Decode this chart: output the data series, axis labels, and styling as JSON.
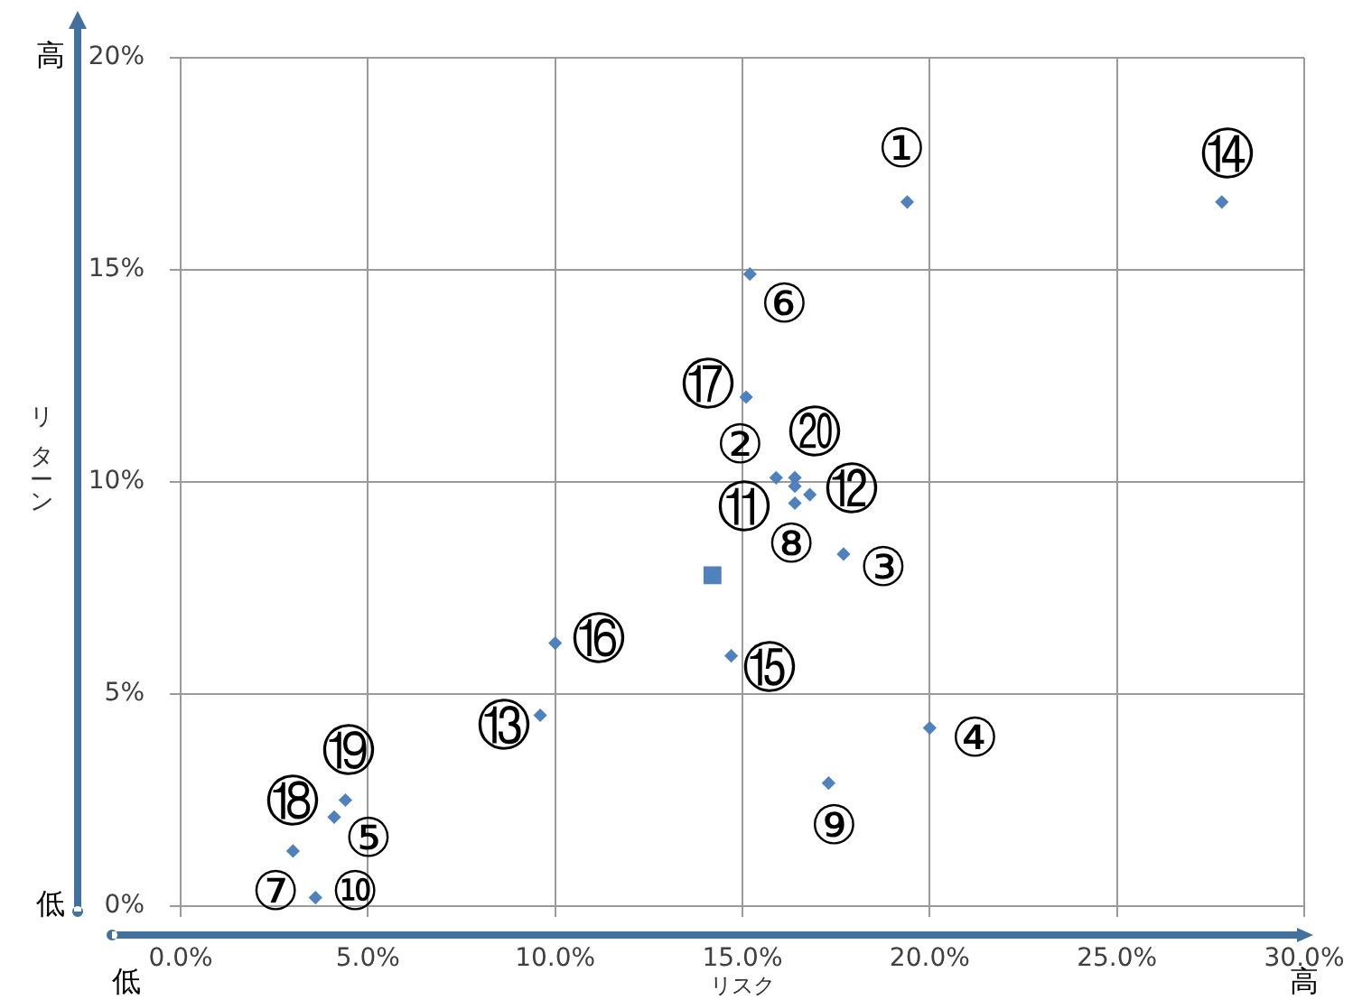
{
  "chart_data": {
    "type": "scatter",
    "xlabel": "リスク",
    "ylabel": "リターン",
    "xlim": [
      0,
      30
    ],
    "xticks": [
      {
        "value": 0,
        "label": "0.0%"
      },
      {
        "value": 5,
        "label": "5.0%"
      },
      {
        "value": 10,
        "label": "10.0%"
      },
      {
        "value": 15,
        "label": "15.0%"
      },
      {
        "value": 20,
        "label": "20.0%"
      },
      {
        "value": 25,
        "label": "25.0%"
      },
      {
        "value": 30,
        "label": "30.0%"
      }
    ],
    "ylim": [
      0,
      20
    ],
    "yticks": [
      {
        "value": 0,
        "label": "0%"
      },
      {
        "value": 5,
        "label": "5%"
      },
      {
        "value": 10,
        "label": "10%"
      },
      {
        "value": 15,
        "label": "15%"
      },
      {
        "value": 20,
        "label": "20%"
      }
    ],
    "grid": true,
    "marker": "diamond",
    "series": [
      {
        "color": "#4f81bd",
        "x": [
          19.4,
          15.9,
          17.7,
          20.0,
          4.1,
          15.2,
          3.6,
          16.4,
          17.3,
          16.4,
          16.8,
          9.6,
          27.8,
          14.7,
          10.0,
          15.1,
          3.0,
          4.4,
          16.4
        ],
        "values": [
          16.6,
          10.1,
          8.3,
          4.2,
          2.1,
          14.9,
          0.2,
          9.5,
          2.9,
          9.9,
          9.7,
          4.5,
          16.6,
          5.9,
          6.2,
          12.0,
          1.3,
          2.5,
          10.1
        ]
      },
      {
        "color": "#4f81bd",
        "marker": "square",
        "x": [
          14.2
        ],
        "values": [
          7.8
        ]
      }
    ],
    "annotations": [
      "高",
      "低",
      "低",
      "高",
      {
        "text": "①",
        "x": 19.4,
        "y": 16.6
      },
      {
        "text": "②",
        "x": 15.9,
        "y": 10.1
      },
      {
        "text": "③",
        "x": 17.7,
        "y": 8.3
      },
      {
        "text": "④",
        "x": 20.0,
        "y": 4.2
      },
      {
        "text": "⑤",
        "x": 4.1,
        "y": 2.1
      },
      {
        "text": "⑥",
        "x": 15.2,
        "y": 14.9
      },
      {
        "text": "⑦",
        "x": 3.6,
        "y": 0.2
      },
      {
        "text": "⑧",
        "x": 16.4,
        "y": 9.5
      },
      {
        "text": "⑨",
        "x": 17.3,
        "y": 2.9
      },
      {
        "text": "⑩",
        "x": 3.6,
        "y": 0.2
      },
      {
        "text": "⑪",
        "x": 16.4,
        "y": 9.9
      },
      {
        "text": "⑫",
        "x": 16.8,
        "y": 9.7
      },
      {
        "text": "⑬",
        "x": 9.6,
        "y": 4.5
      },
      {
        "text": "⑭",
        "x": 27.8,
        "y": 16.6
      },
      {
        "text": "⑮",
        "x": 14.7,
        "y": 5.9
      },
      {
        "text": "⑯",
        "x": 10.0,
        "y": 6.2
      },
      {
        "text": "⑰",
        "x": 15.1,
        "y": 12.0
      },
      {
        "text": "⑱",
        "x": 3.0,
        "y": 1.3
      },
      {
        "text": "⑲",
        "x": 4.4,
        "y": 2.5
      },
      {
        "text": "⑳",
        "x": 16.4,
        "y": 10.1
      }
    ]
  }
}
